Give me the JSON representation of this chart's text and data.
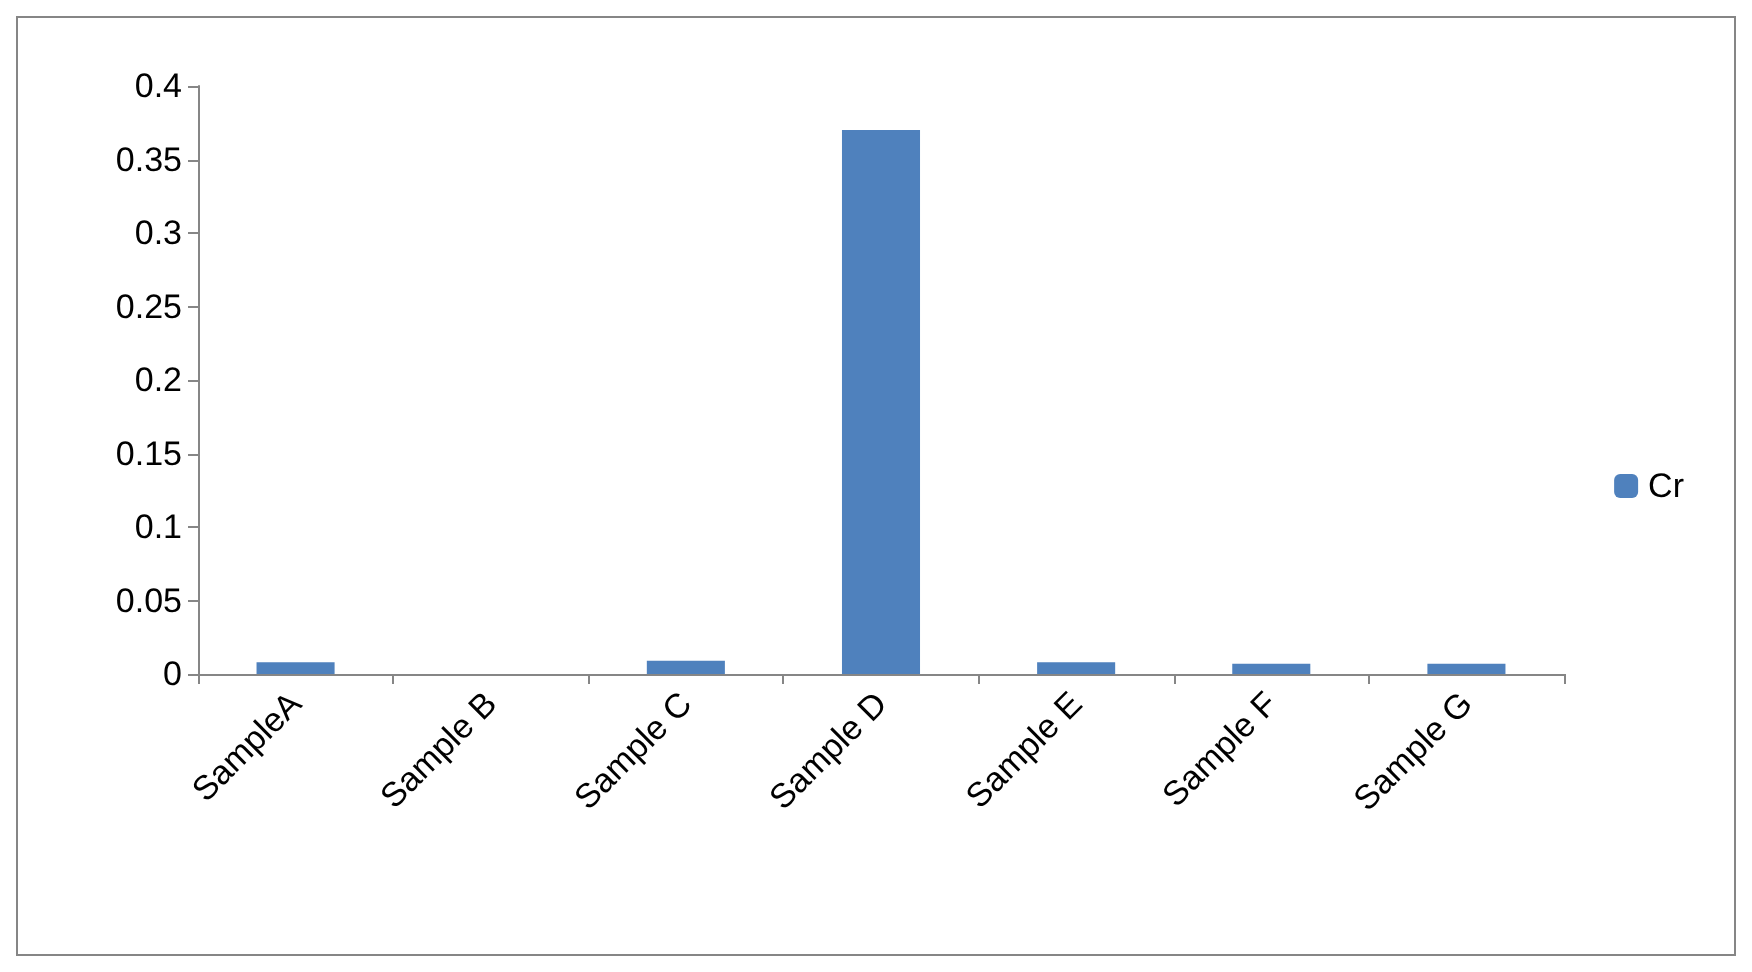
{
  "chart_data": {
    "type": "bar",
    "categories": [
      "SampleA",
      "Sample B",
      "Sample C",
      "Sample D",
      "Sample E",
      "Sample F",
      "Sample G"
    ],
    "series": [
      {
        "name": "Cr",
        "color": "#4f81bd",
        "values": [
          0.008,
          0,
          0.009,
          0.37,
          0.008,
          0.007,
          0.007
        ]
      }
    ],
    "ylim": [
      0,
      0.4
    ],
    "yticks": [
      0,
      0.05,
      0.1,
      0.15,
      0.2,
      0.25,
      0.3,
      0.35,
      0.4
    ],
    "grid": false,
    "legend": "right"
  }
}
